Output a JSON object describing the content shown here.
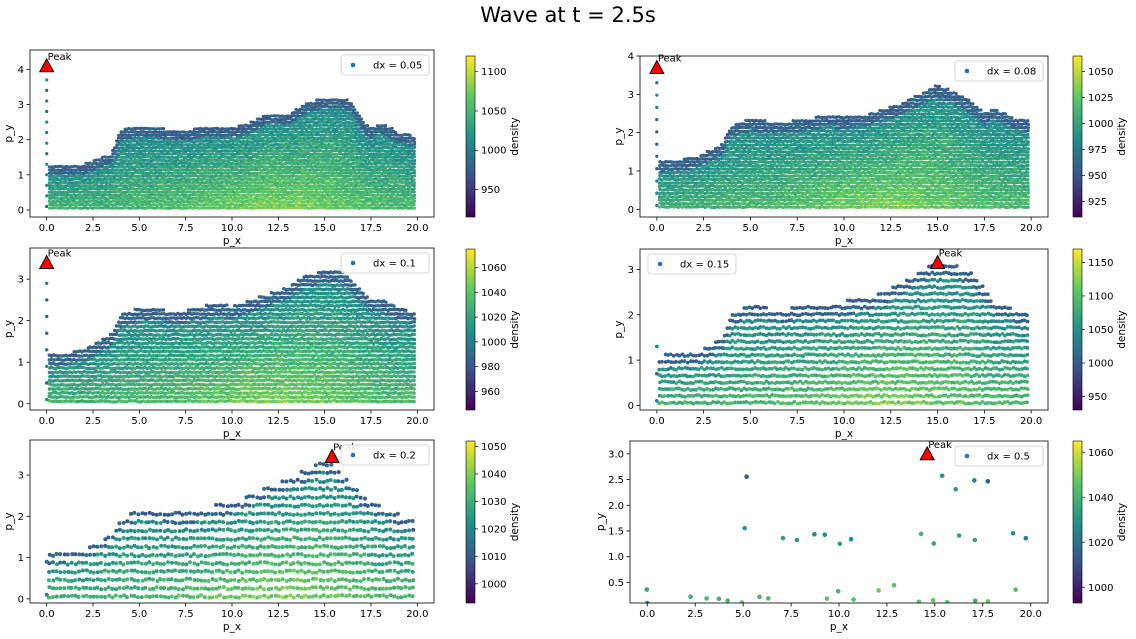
{
  "figure": {
    "title": "Wave at t = 2.5s"
  },
  "chart_data": [
    {
      "type": "scatter",
      "xlabel": "p_x",
      "ylabel": "p_y",
      "xlim": [
        -0.9,
        20.9
      ],
      "ylim": [
        -0.2,
        4.55
      ],
      "xticks": [
        0,
        2.5,
        5,
        7.5,
        10,
        12.5,
        15,
        17.5,
        20
      ],
      "yticks": [
        0,
        1,
        2,
        3,
        4
      ],
      "series": [
        {
          "name": "dx = 0.05"
        }
      ],
      "dx": 0.05,
      "peak": {
        "label": "Peak",
        "x": 0,
        "y": 4.1
      },
      "surface": [
        [
          0,
          1.28
        ],
        [
          2,
          1.3
        ],
        [
          3.5,
          1.6
        ],
        [
          4,
          2.3
        ],
        [
          5,
          2.38
        ],
        [
          6,
          2.35
        ],
        [
          7,
          2.25
        ],
        [
          8,
          2.32
        ],
        [
          9,
          2.4
        ],
        [
          10,
          2.35
        ],
        [
          11,
          2.5
        ],
        [
          12,
          2.75
        ],
        [
          13,
          2.7
        ],
        [
          14,
          3.05
        ],
        [
          15,
          3.2
        ],
        [
          16,
          3.2
        ],
        [
          16.5,
          3.05
        ],
        [
          17,
          2.6
        ],
        [
          17.5,
          2.3
        ],
        [
          18,
          2.5
        ],
        [
          19,
          2.2
        ],
        [
          20,
          2.1
        ]
      ],
      "colorbar": {
        "label": "density",
        "min": 915,
        "max": 1120,
        "ticks": [
          950,
          1000,
          1050,
          1100
        ]
      },
      "legend": "upper-right",
      "grid": false
    },
    {
      "type": "scatter",
      "xlabel": "p_x",
      "ylabel": "p_y",
      "xlim": [
        -0.9,
        20.9
      ],
      "ylim": [
        -0.2,
        4.0
      ],
      "xticks": [
        0,
        2.5,
        5,
        7.5,
        10,
        12.5,
        15,
        17.5,
        20
      ],
      "yticks": [
        0,
        1,
        2,
        3,
        4
      ],
      "series": [
        {
          "name": "dx = 0.08"
        }
      ],
      "dx": 0.08,
      "peak": {
        "label": "Peak",
        "x": 0,
        "y": 3.7
      },
      "surface": [
        [
          0,
          1.25
        ],
        [
          2,
          1.35
        ],
        [
          3.5,
          1.7
        ],
        [
          4,
          2.2
        ],
        [
          5,
          2.35
        ],
        [
          6,
          2.3
        ],
        [
          7,
          2.3
        ],
        [
          8,
          2.35
        ],
        [
          9,
          2.45
        ],
        [
          10,
          2.4
        ],
        [
          11,
          2.45
        ],
        [
          12,
          2.6
        ],
        [
          13,
          2.75
        ],
        [
          14,
          3.0
        ],
        [
          15,
          3.25
        ],
        [
          16,
          3.05
        ],
        [
          17,
          2.75
        ],
        [
          17.5,
          2.5
        ],
        [
          18,
          2.65
        ],
        [
          19,
          2.4
        ],
        [
          20,
          2.3
        ]
      ],
      "colorbar": {
        "label": "density",
        "min": 910,
        "max": 1065,
        "ticks": [
          925,
          950,
          975,
          1000,
          1025,
          1050
        ]
      },
      "legend": "upper-right",
      "grid": false
    },
    {
      "type": "scatter",
      "xlabel": "p_x",
      "ylabel": "p_y",
      "xlim": [
        -0.9,
        20.9
      ],
      "ylim": [
        -0.15,
        3.75
      ],
      "xticks": [
        0,
        2.5,
        5,
        7.5,
        10,
        12.5,
        15,
        17.5,
        20
      ],
      "yticks": [
        0,
        1,
        2,
        3
      ],
      "series": [
        {
          "name": "dx = 0.1"
        }
      ],
      "dx": 0.1,
      "peak": {
        "label": "Peak",
        "x": 0,
        "y": 3.4
      },
      "surface": [
        [
          0,
          1.15
        ],
        [
          2,
          1.3
        ],
        [
          3.5,
          1.7
        ],
        [
          4,
          2.15
        ],
        [
          5,
          2.3
        ],
        [
          6,
          2.3
        ],
        [
          7,
          2.2
        ],
        [
          8,
          2.3
        ],
        [
          9,
          2.4
        ],
        [
          10,
          2.35
        ],
        [
          11,
          2.5
        ],
        [
          12,
          2.65
        ],
        [
          13,
          2.8
        ],
        [
          14,
          3.1
        ],
        [
          15,
          3.2
        ],
        [
          16,
          3.2
        ],
        [
          17,
          2.75
        ],
        [
          17.5,
          2.5
        ],
        [
          18,
          2.55
        ],
        [
          19,
          2.3
        ],
        [
          20,
          2.2
        ]
      ],
      "colorbar": {
        "label": "density",
        "min": 945,
        "max": 1075,
        "ticks": [
          960,
          980,
          1000,
          1020,
          1040,
          1060
        ]
      },
      "legend": "upper-right",
      "grid": false
    },
    {
      "type": "scatter",
      "xlabel": "p_x",
      "ylabel": "p_y",
      "xlim": [
        -0.9,
        20.9
      ],
      "ylim": [
        -0.1,
        3.45
      ],
      "xticks": [
        0,
        2.5,
        5,
        7.5,
        10,
        12.5,
        15,
        17.5,
        20
      ],
      "yticks": [
        0,
        1,
        2,
        3
      ],
      "series": [
        {
          "name": "dx = 0.15"
        }
      ],
      "dx": 0.15,
      "peak": {
        "label": "Peak",
        "x": 15,
        "y": 3.15
      },
      "surface": [
        [
          0,
          1.1
        ],
        [
          2,
          1.15
        ],
        [
          3.5,
          1.5
        ],
        [
          4,
          2.0
        ],
        [
          5,
          2.25
        ],
        [
          6,
          2.15
        ],
        [
          7,
          2.15
        ],
        [
          8,
          2.2
        ],
        [
          9,
          2.25
        ],
        [
          10,
          2.3
        ],
        [
          11,
          2.35
        ],
        [
          12,
          2.5
        ],
        [
          13,
          2.7
        ],
        [
          14,
          2.95
        ],
        [
          15,
          3.15
        ],
        [
          16,
          3.1
        ],
        [
          17,
          2.9
        ],
        [
          17.5,
          2.6
        ],
        [
          18,
          2.3
        ],
        [
          19,
          2.15
        ],
        [
          20,
          2.0
        ]
      ],
      "colorbar": {
        "label": "density",
        "min": 930,
        "max": 1170,
        "ticks": [
          950,
          1000,
          1050,
          1100,
          1150
        ]
      },
      "legend": "upper-left",
      "grid": false
    },
    {
      "type": "scatter",
      "xlabel": "p_x",
      "ylabel": "p_y",
      "xlim": [
        -0.9,
        20.9
      ],
      "ylim": [
        -0.1,
        3.85
      ],
      "xticks": [
        0,
        2.5,
        5,
        7.5,
        10,
        12.5,
        15,
        17.5,
        20
      ],
      "yticks": [
        0,
        1,
        2,
        3
      ],
      "series": [
        {
          "name": "dx = 0.2"
        }
      ],
      "dx": 0.2,
      "peak": {
        "label": "Peak",
        "x": 15.4,
        "y": 3.45
      },
      "surface": [
        [
          0,
          1.15
        ],
        [
          2,
          1.2
        ],
        [
          3.5,
          1.6
        ],
        [
          4,
          1.95
        ],
        [
          5,
          2.25
        ],
        [
          6,
          2.15
        ],
        [
          7,
          2.1
        ],
        [
          8,
          2.15
        ],
        [
          9,
          2.25
        ],
        [
          10,
          2.35
        ],
        [
          11,
          2.55
        ],
        [
          12,
          2.7
        ],
        [
          13,
          2.95
        ],
        [
          14,
          3.1
        ],
        [
          15,
          3.4
        ],
        [
          16,
          3.0
        ],
        [
          17,
          2.55
        ],
        [
          17.5,
          2.4
        ],
        [
          18,
          2.25
        ],
        [
          19,
          2.05
        ],
        [
          20,
          1.9
        ]
      ],
      "colorbar": {
        "label": "density",
        "min": 993,
        "max": 1052,
        "ticks": [
          1000,
          1010,
          1020,
          1030,
          1040,
          1050
        ]
      },
      "legend": "upper-right",
      "grid": false
    },
    {
      "type": "scatter",
      "xlabel": "p_x",
      "ylabel": "p_y",
      "xlim": [
        -0.9,
        20.9
      ],
      "ylim": [
        0.1,
        3.25
      ],
      "xticks": [
        0,
        2.5,
        5,
        7.5,
        10,
        12.5,
        15,
        17.5,
        20
      ],
      "yticks": [
        0.5,
        1.0,
        1.5,
        2.0,
        2.5,
        3.0
      ],
      "series": [
        {
          "name": "dx = 0.5"
        }
      ],
      "dx": 0.5,
      "peak": {
        "label": "Peak",
        "x": 14.6,
        "y": 3.0
      },
      "surface": [
        [
          0,
          1.05
        ],
        [
          2,
          1.1
        ],
        [
          4,
          1.5
        ],
        [
          5,
          2.6
        ],
        [
          6,
          1.8
        ],
        [
          7,
          1.85
        ],
        [
          8,
          1.95
        ],
        [
          9,
          1.8
        ],
        [
          10,
          1.6
        ],
        [
          11,
          1.8
        ],
        [
          12,
          1.95
        ],
        [
          13,
          2.75
        ],
        [
          14,
          3.0
        ],
        [
          15,
          2.95
        ],
        [
          16,
          3.05
        ],
        [
          17,
          2.8
        ],
        [
          18,
          2.45
        ],
        [
          19,
          2.3
        ],
        [
          20,
          1.35
        ]
      ],
      "colorbar": {
        "label": "density",
        "min": 993,
        "max": 1065,
        "ticks": [
          1000,
          1020,
          1040,
          1060
        ]
      },
      "legend": "upper-right",
      "grid": false
    }
  ]
}
